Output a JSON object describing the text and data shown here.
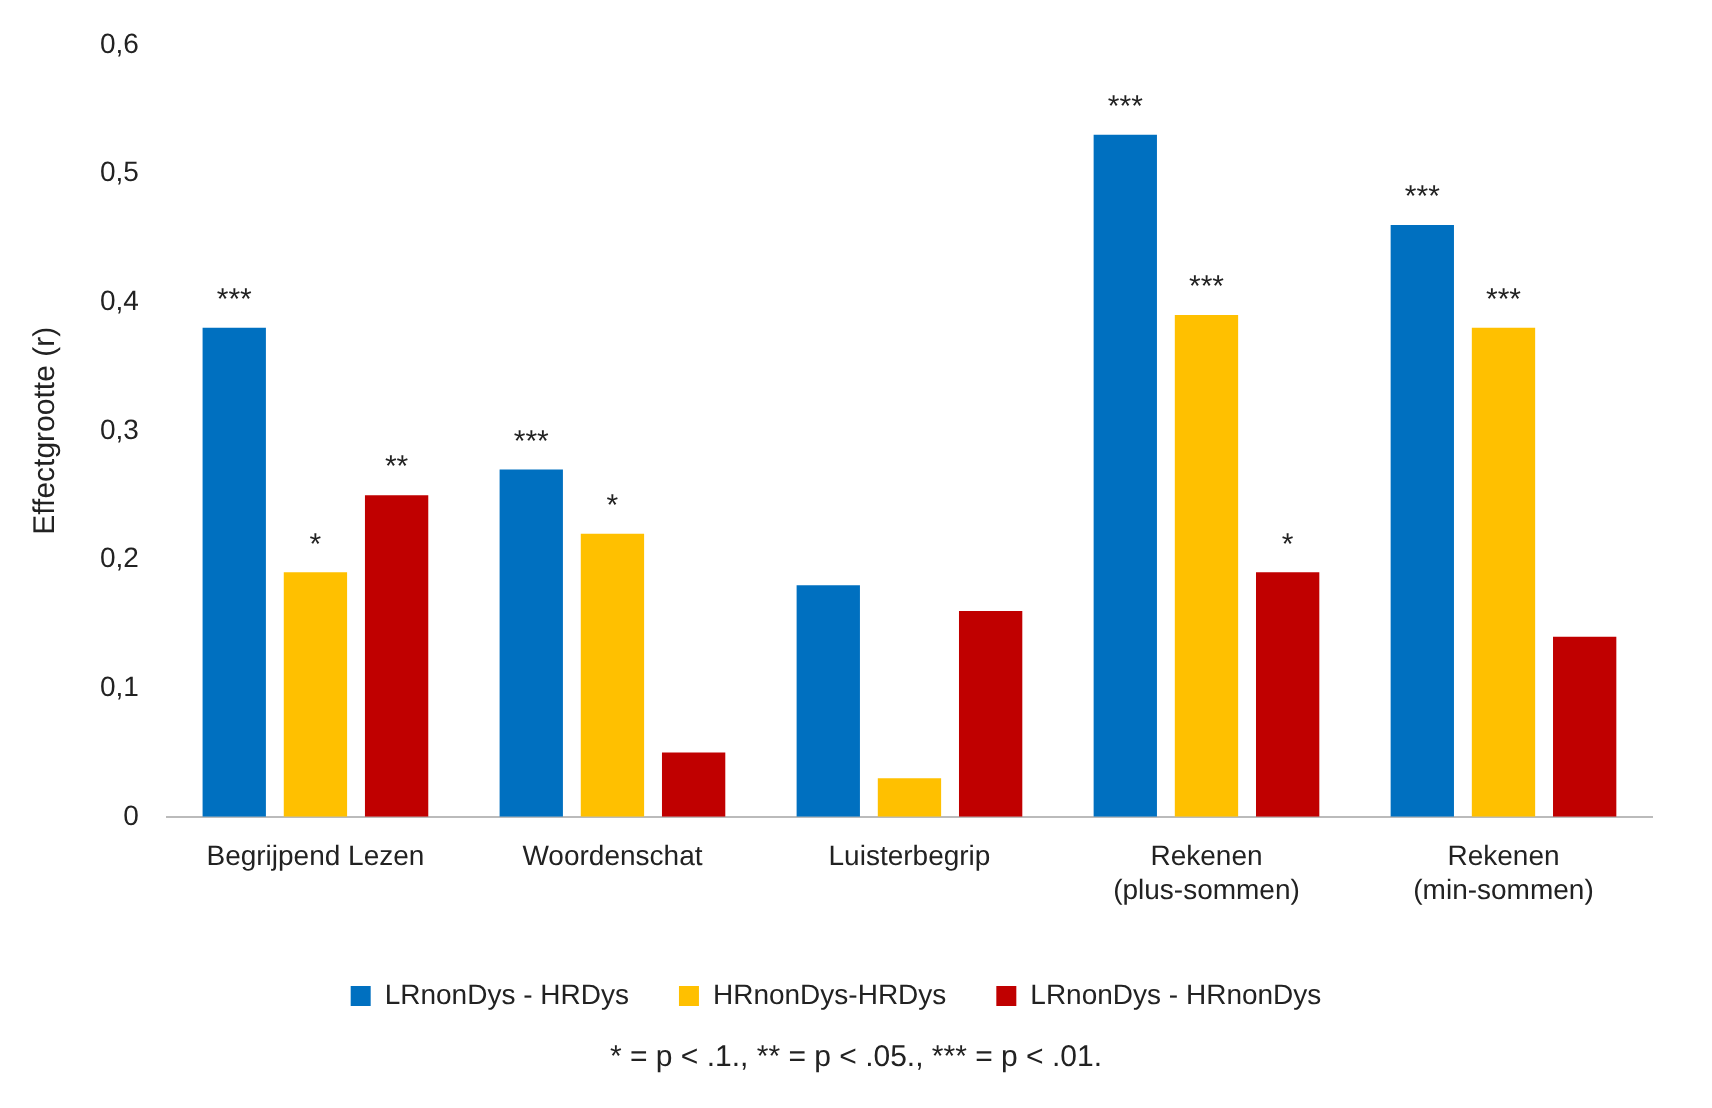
{
  "chart_data": {
    "type": "bar",
    "ylabel": "Effectgrootte (r)",
    "categories": [
      "Begrijpend Lezen",
      "Woordenschat",
      "Luisterbegrip",
      "Rekenen\n(plus-sommen)",
      "Rekenen\n(min-sommen)"
    ],
    "series": [
      {
        "name": "LRnonDys - HRDys",
        "color": "#0070c0",
        "values": [
          0.38,
          0.27,
          0.18,
          0.53,
          0.46
        ],
        "value_labels": [
          "***",
          "***",
          null,
          "***",
          "***"
        ]
      },
      {
        "name": "HRnonDys-HRDys",
        "color": "#ffc000",
        "values": [
          0.19,
          0.22,
          0.03,
          0.39,
          0.38
        ],
        "value_labels": [
          "*",
          "*",
          null,
          "***",
          "***"
        ]
      },
      {
        "name": "LRnonDys - HRnonDys",
        "color": "#c00000",
        "values": [
          0.25,
          0.05,
          0.16,
          0.19,
          0.14
        ],
        "value_labels": [
          "**",
          null,
          null,
          "*",
          null
        ]
      }
    ],
    "ylim": [
      0,
      0.6
    ],
    "yticks": [
      {
        "value": 0,
        "label": "0"
      },
      {
        "value": 0.1,
        "label": "0,1"
      },
      {
        "value": 0.2,
        "label": "0,2"
      },
      {
        "value": 0.3,
        "label": "0,3"
      },
      {
        "value": 0.4,
        "label": "0,4"
      },
      {
        "value": 0.5,
        "label": "0,5"
      },
      {
        "value": 0.6,
        "label": "0,6"
      }
    ],
    "grid": false,
    "legend": "bottom",
    "annotations": [
      "* =  p < .1., ** =  p < .05., *** =  p  < .01."
    ]
  }
}
